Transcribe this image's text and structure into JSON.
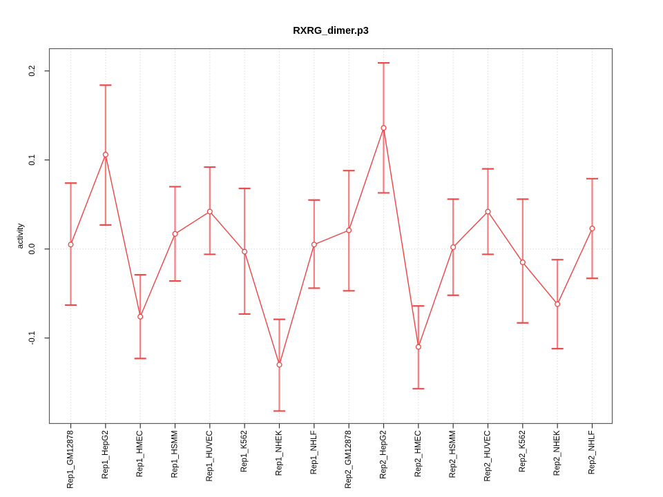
{
  "title": "RXRG_dimer.p3",
  "chart_data": {
    "type": "line",
    "title": "RXRG_dimer.p3",
    "xlabel": "",
    "ylabel": "activity",
    "ylim": [
      -0.196,
      0.225
    ],
    "ytick_values": [
      -0.1,
      0.0,
      0.1,
      0.2
    ],
    "ytick_labels": [
      "-0.1",
      "0.0",
      "0.1",
      "0.2"
    ],
    "grid": "dotted vertical line at each category; dotted horizontal line at y=0",
    "legend_position": "none",
    "point_marker": "open-circle",
    "error_bars": true,
    "categories": [
      "Rep1_GM12878",
      "Rep1_HepG2",
      "Rep1_HMEC",
      "Rep1_HSMM",
      "Rep1_HUVEC",
      "Rep1_K562",
      "Rep1_NHEK",
      "Rep1_NHLF",
      "Rep2_GM12878",
      "Rep2_HepG2",
      "Rep2_HMEC",
      "Rep2_HSMM",
      "Rep2_HUVEC",
      "Rep2_K562",
      "Rep2_NHEK",
      "Rep2_NHLF"
    ],
    "series": [
      {
        "name": "activity",
        "values": [
          0.005,
          0.106,
          -0.076,
          0.017,
          0.042,
          -0.003,
          -0.13,
          0.005,
          0.021,
          0.136,
          -0.11,
          0.002,
          0.042,
          -0.015,
          -0.062,
          0.023
        ],
        "error_upper": [
          0.074,
          0.184,
          -0.029,
          0.07,
          0.092,
          0.068,
          -0.079,
          0.055,
          0.088,
          0.209,
          -0.064,
          0.056,
          0.09,
          0.056,
          -0.012,
          0.079
        ],
        "error_lower": [
          -0.063,
          0.027,
          -0.123,
          -0.036,
          -0.006,
          -0.073,
          -0.182,
          -0.044,
          -0.047,
          0.063,
          -0.157,
          -0.052,
          -0.006,
          -0.083,
          -0.112,
          -0.033
        ]
      }
    ]
  },
  "colors": {
    "series_red": "#ee4343",
    "error_bar_body": "#f57d7d",
    "error_bar_cap": "#e84d4d",
    "gridline": "#d9d9d9",
    "axis_frame": "#5a5a5a",
    "tick": "#333333",
    "text": "#000000",
    "background": "#ffffff"
  }
}
